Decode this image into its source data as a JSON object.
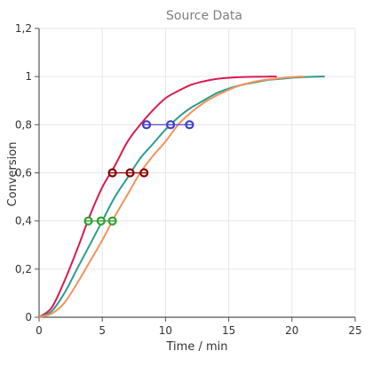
{
  "chart_data": {
    "type": "line",
    "title": "Source Data",
    "xlabel": "Time / min",
    "ylabel": "Conversion",
    "xlim": [
      0,
      25
    ],
    "ylim": [
      0,
      1.2
    ],
    "grid": true,
    "x_ticks": [
      "0",
      "5",
      "10",
      "15",
      "20",
      "25"
    ],
    "y_ticks": [
      "0",
      "0,2",
      "0,4",
      "0,6",
      "0,8",
      "1",
      "1,2"
    ],
    "series": [
      {
        "color": "#d81b50",
        "x": [
          0,
          1,
          2,
          3,
          4,
          5,
          6,
          7,
          8,
          9,
          10,
          11,
          12,
          13,
          14,
          15,
          16,
          17,
          18,
          18.8
        ],
        "y": [
          0,
          0.04,
          0.15,
          0.28,
          0.42,
          0.54,
          0.63,
          0.73,
          0.8,
          0.86,
          0.91,
          0.94,
          0.965,
          0.98,
          0.99,
          0.995,
          0.998,
          0.999,
          1.0,
          1.0
        ]
      },
      {
        "color": "#2a9d8f",
        "x": [
          0,
          1,
          2,
          3,
          4,
          5,
          6,
          7,
          8,
          9,
          10,
          11,
          12,
          13,
          14,
          15,
          16,
          17,
          18,
          19,
          20,
          21,
          22,
          22.6
        ],
        "y": [
          0,
          0.025,
          0.1,
          0.2,
          0.3,
          0.4,
          0.5,
          0.58,
          0.66,
          0.72,
          0.78,
          0.83,
          0.87,
          0.9,
          0.93,
          0.95,
          0.965,
          0.975,
          0.985,
          0.99,
          0.995,
          0.998,
          1.0,
          1.0
        ]
      },
      {
        "color": "#f4925a",
        "x": [
          0,
          1,
          2,
          3,
          4,
          5,
          6,
          7,
          8,
          9,
          10,
          11,
          12,
          13,
          14,
          15,
          16,
          17,
          18,
          19,
          20,
          21
        ],
        "y": [
          0,
          0.015,
          0.06,
          0.14,
          0.23,
          0.32,
          0.42,
          0.51,
          0.6,
          0.67,
          0.73,
          0.8,
          0.85,
          0.89,
          0.92,
          0.945,
          0.965,
          0.978,
          0.987,
          0.993,
          0.998,
          1.0
        ]
      }
    ],
    "markers": [
      {
        "color": "#2ea02e",
        "y": 0.4,
        "x": [
          3.9,
          4.9,
          5.8
        ]
      },
      {
        "color": "#8b0000",
        "y": 0.6,
        "x": [
          5.8,
          7.2,
          8.3
        ]
      },
      {
        "color": "#4040cc",
        "y": 0.8,
        "x": [
          8.5,
          10.4,
          11.9
        ]
      }
    ]
  }
}
